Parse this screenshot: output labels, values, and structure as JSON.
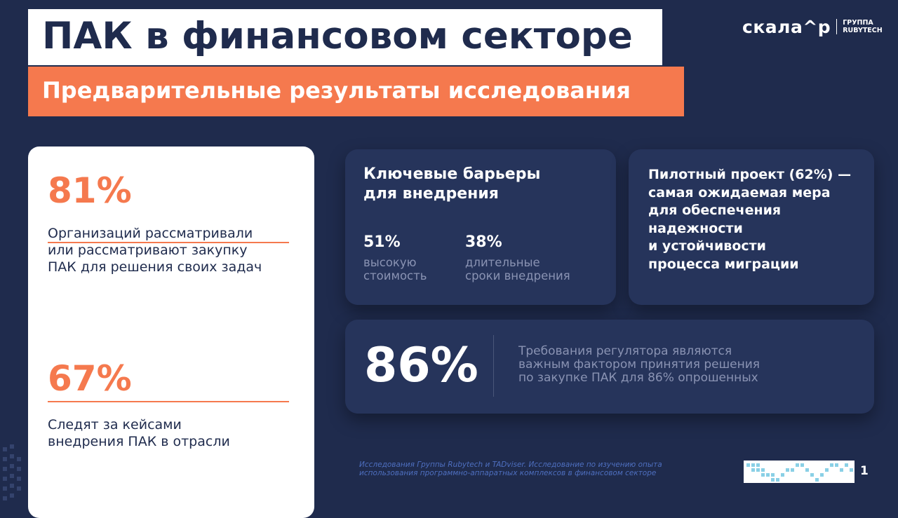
{
  "header": {
    "title": "ПАК в финансовом секторе",
    "subtitle": "Предварительные результаты исследования"
  },
  "logo": {
    "brand": "скала^р",
    "group_line1": "ГРУППА",
    "group_line2": "RUBYTECH"
  },
  "left_card": {
    "stat1_value": "81%",
    "stat1_line1": "Организаций рассматривали",
    "stat1_line2": "или рассматривают закупку",
    "stat1_line3": "ПАК для решения своих задач",
    "stat2_value": "67%",
    "stat2_line1": "Следят за кейсами",
    "stat2_line2": "внедрения ПАК в отрасли"
  },
  "barriers_card": {
    "title_line1": "Ключевые барьеры",
    "title_line2": "для внедрения",
    "stat1_value": "51%",
    "stat1_line1": "высокую",
    "stat1_line2": "стоимость",
    "stat2_value": "38%",
    "stat2_line1": "длительные",
    "stat2_line2": "сроки внедрения"
  },
  "pilot_card": {
    "line1": "Пилотный проект (62%) —",
    "line2": "самая ожидаемая мера",
    "line3": "для обеспечения",
    "line4": "надежности",
    "line5": "и устойчивости",
    "line6": "процесса миграции"
  },
  "regulator_card": {
    "value": "86%",
    "line1": "Требования регулятора являются",
    "line2": "важным фактором принятия решения",
    "line3": "по закупке ПАК для 86% опрошенных"
  },
  "footer": {
    "source_line1": "Исследования Группы Rubytech и TADviser. Исследование по изучению опыта",
    "source_line2": "использования программно-аппаратных комплексов в финансовом секторе",
    "page_number": "1"
  },
  "colors": {
    "background": "#1f2b4d",
    "accent": "#f5794e",
    "card": "#26345b",
    "muted_text": "#8a93b3"
  }
}
